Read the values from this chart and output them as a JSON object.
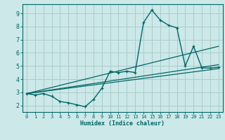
{
  "xlabel": "Humidex (Indice chaleur)",
  "bg_color": "#cce8e8",
  "grid_color": "#aacccc",
  "line_color": "#006666",
  "xlim": [
    -0.5,
    23.5
  ],
  "ylim": [
    1.5,
    9.7
  ],
  "xticks": [
    0,
    1,
    2,
    3,
    4,
    5,
    6,
    7,
    8,
    9,
    10,
    11,
    12,
    13,
    14,
    15,
    16,
    17,
    18,
    19,
    20,
    21,
    22,
    23
  ],
  "yticks": [
    2,
    3,
    4,
    5,
    6,
    7,
    8,
    9
  ],
  "curve1_x": [
    0,
    1,
    2,
    3,
    4,
    5,
    6,
    7,
    8,
    9,
    10,
    11,
    12,
    13,
    14,
    15,
    16,
    17,
    18,
    19,
    20,
    21,
    22,
    23
  ],
  "curve1_y": [
    2.9,
    2.8,
    2.9,
    2.7,
    2.3,
    2.2,
    2.05,
    1.9,
    2.45,
    3.3,
    4.6,
    4.5,
    4.6,
    4.5,
    8.3,
    9.25,
    8.5,
    8.1,
    7.9,
    5.0,
    6.5,
    4.85,
    4.85,
    4.9
  ],
  "line2_x": [
    0,
    23
  ],
  "line2_y": [
    2.9,
    4.8
  ],
  "line3_x": [
    0,
    23
  ],
  "line3_y": [
    2.9,
    5.1
  ],
  "line4_x": [
    0,
    23
  ],
  "line4_y": [
    2.9,
    6.5
  ]
}
